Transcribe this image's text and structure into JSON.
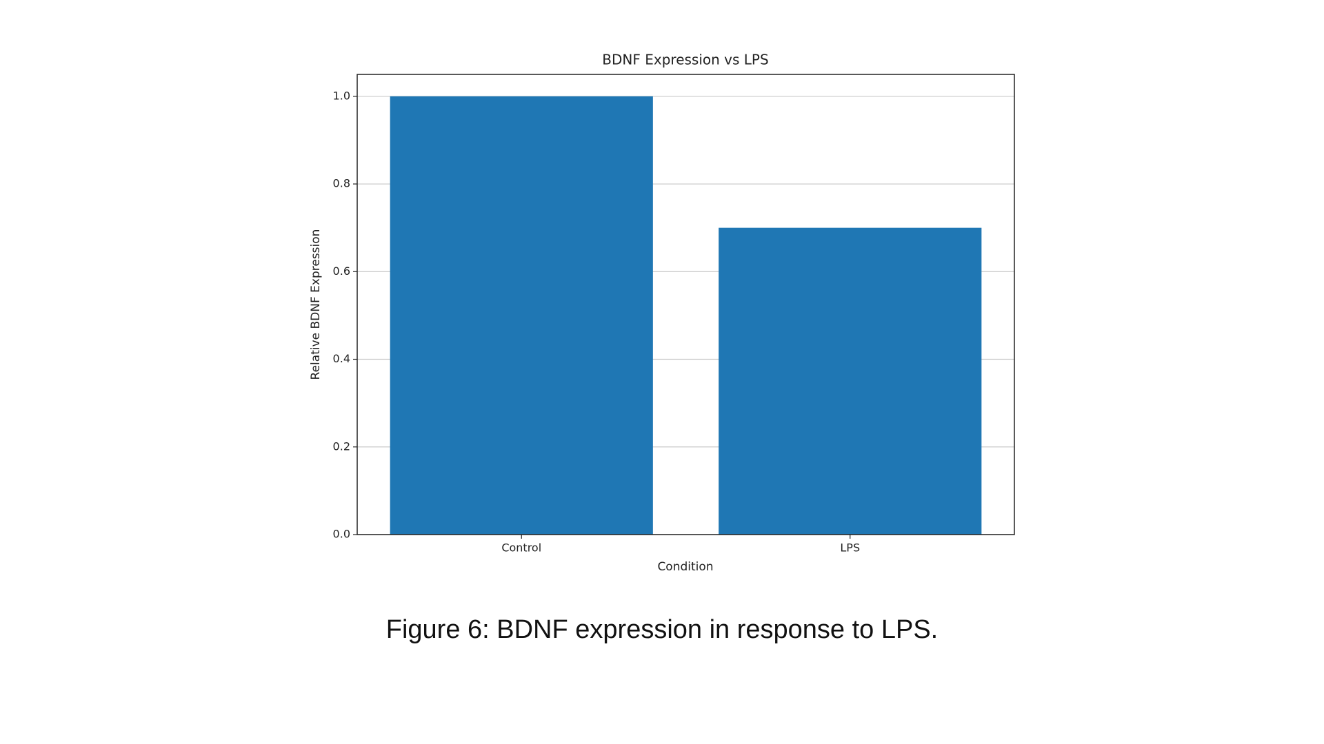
{
  "chart_data": {
    "type": "bar",
    "title": "BDNF Expression vs LPS",
    "x_label": "Condition",
    "y_label": "Relative BDNF Expression",
    "categories": [
      "Control",
      "LPS"
    ],
    "values": [
      1.0,
      0.7
    ],
    "color": "#1f77b4",
    "ylim": [
      0,
      1.05
    ],
    "yticks": [
      {
        "value": 0,
        "label": "0.0"
      },
      0.2,
      0.4,
      0.6,
      0.8,
      {
        "value": 1,
        "label": "1.0"
      }
    ],
    "grid": true
  },
  "caption": "Figure 6: BDNF expression in response to LPS."
}
